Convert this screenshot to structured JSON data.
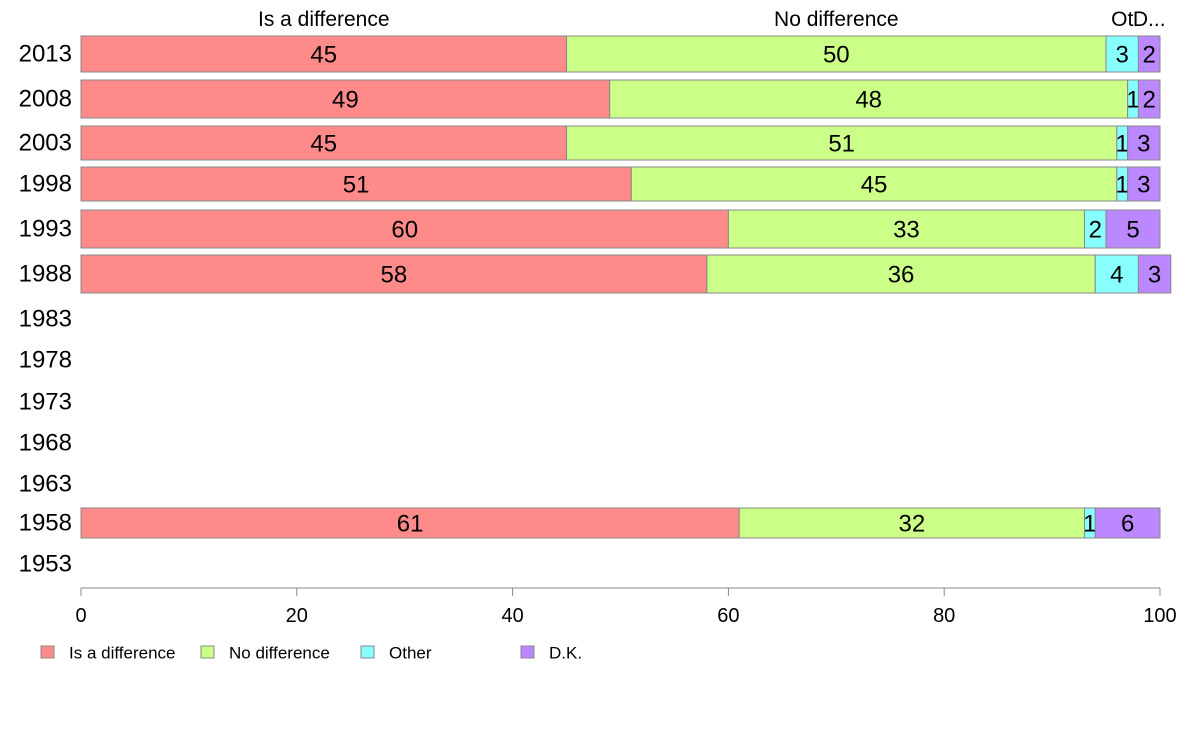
{
  "chart_data": {
    "type": "bar",
    "orientation": "horizontal",
    "stacked": true,
    "categories": [
      "2013",
      "2008",
      "2003",
      "1998",
      "1993",
      "1988",
      "1983",
      "1978",
      "1973",
      "1968",
      "1963",
      "1958",
      "1953"
    ],
    "series": [
      {
        "name": "Is a difference",
        "header": "Is a difference",
        "color": "#ff8a8a",
        "values": [
          45,
          49,
          45,
          51,
          60,
          58,
          null,
          null,
          null,
          null,
          null,
          61,
          null
        ]
      },
      {
        "name": "No difference",
        "header": "No difference",
        "color": "#ccff88",
        "values": [
          50,
          48,
          51,
          45,
          33,
          36,
          null,
          null,
          null,
          null,
          null,
          32,
          null
        ]
      },
      {
        "name": "Other",
        "header": "Ot",
        "color": "#88ffff",
        "values": [
          3,
          1,
          1,
          1,
          2,
          4,
          null,
          null,
          null,
          null,
          null,
          1,
          null
        ]
      },
      {
        "name": "D.K.",
        "header": "D...",
        "color": "#bb88ff",
        "values": [
          2,
          2,
          3,
          3,
          5,
          3,
          null,
          null,
          null,
          null,
          null,
          6,
          null
        ]
      }
    ],
    "xlim": [
      0,
      100
    ],
    "xticks": [
      0,
      20,
      40,
      60,
      80,
      100
    ],
    "grid": false,
    "legend": "bottom-left"
  }
}
